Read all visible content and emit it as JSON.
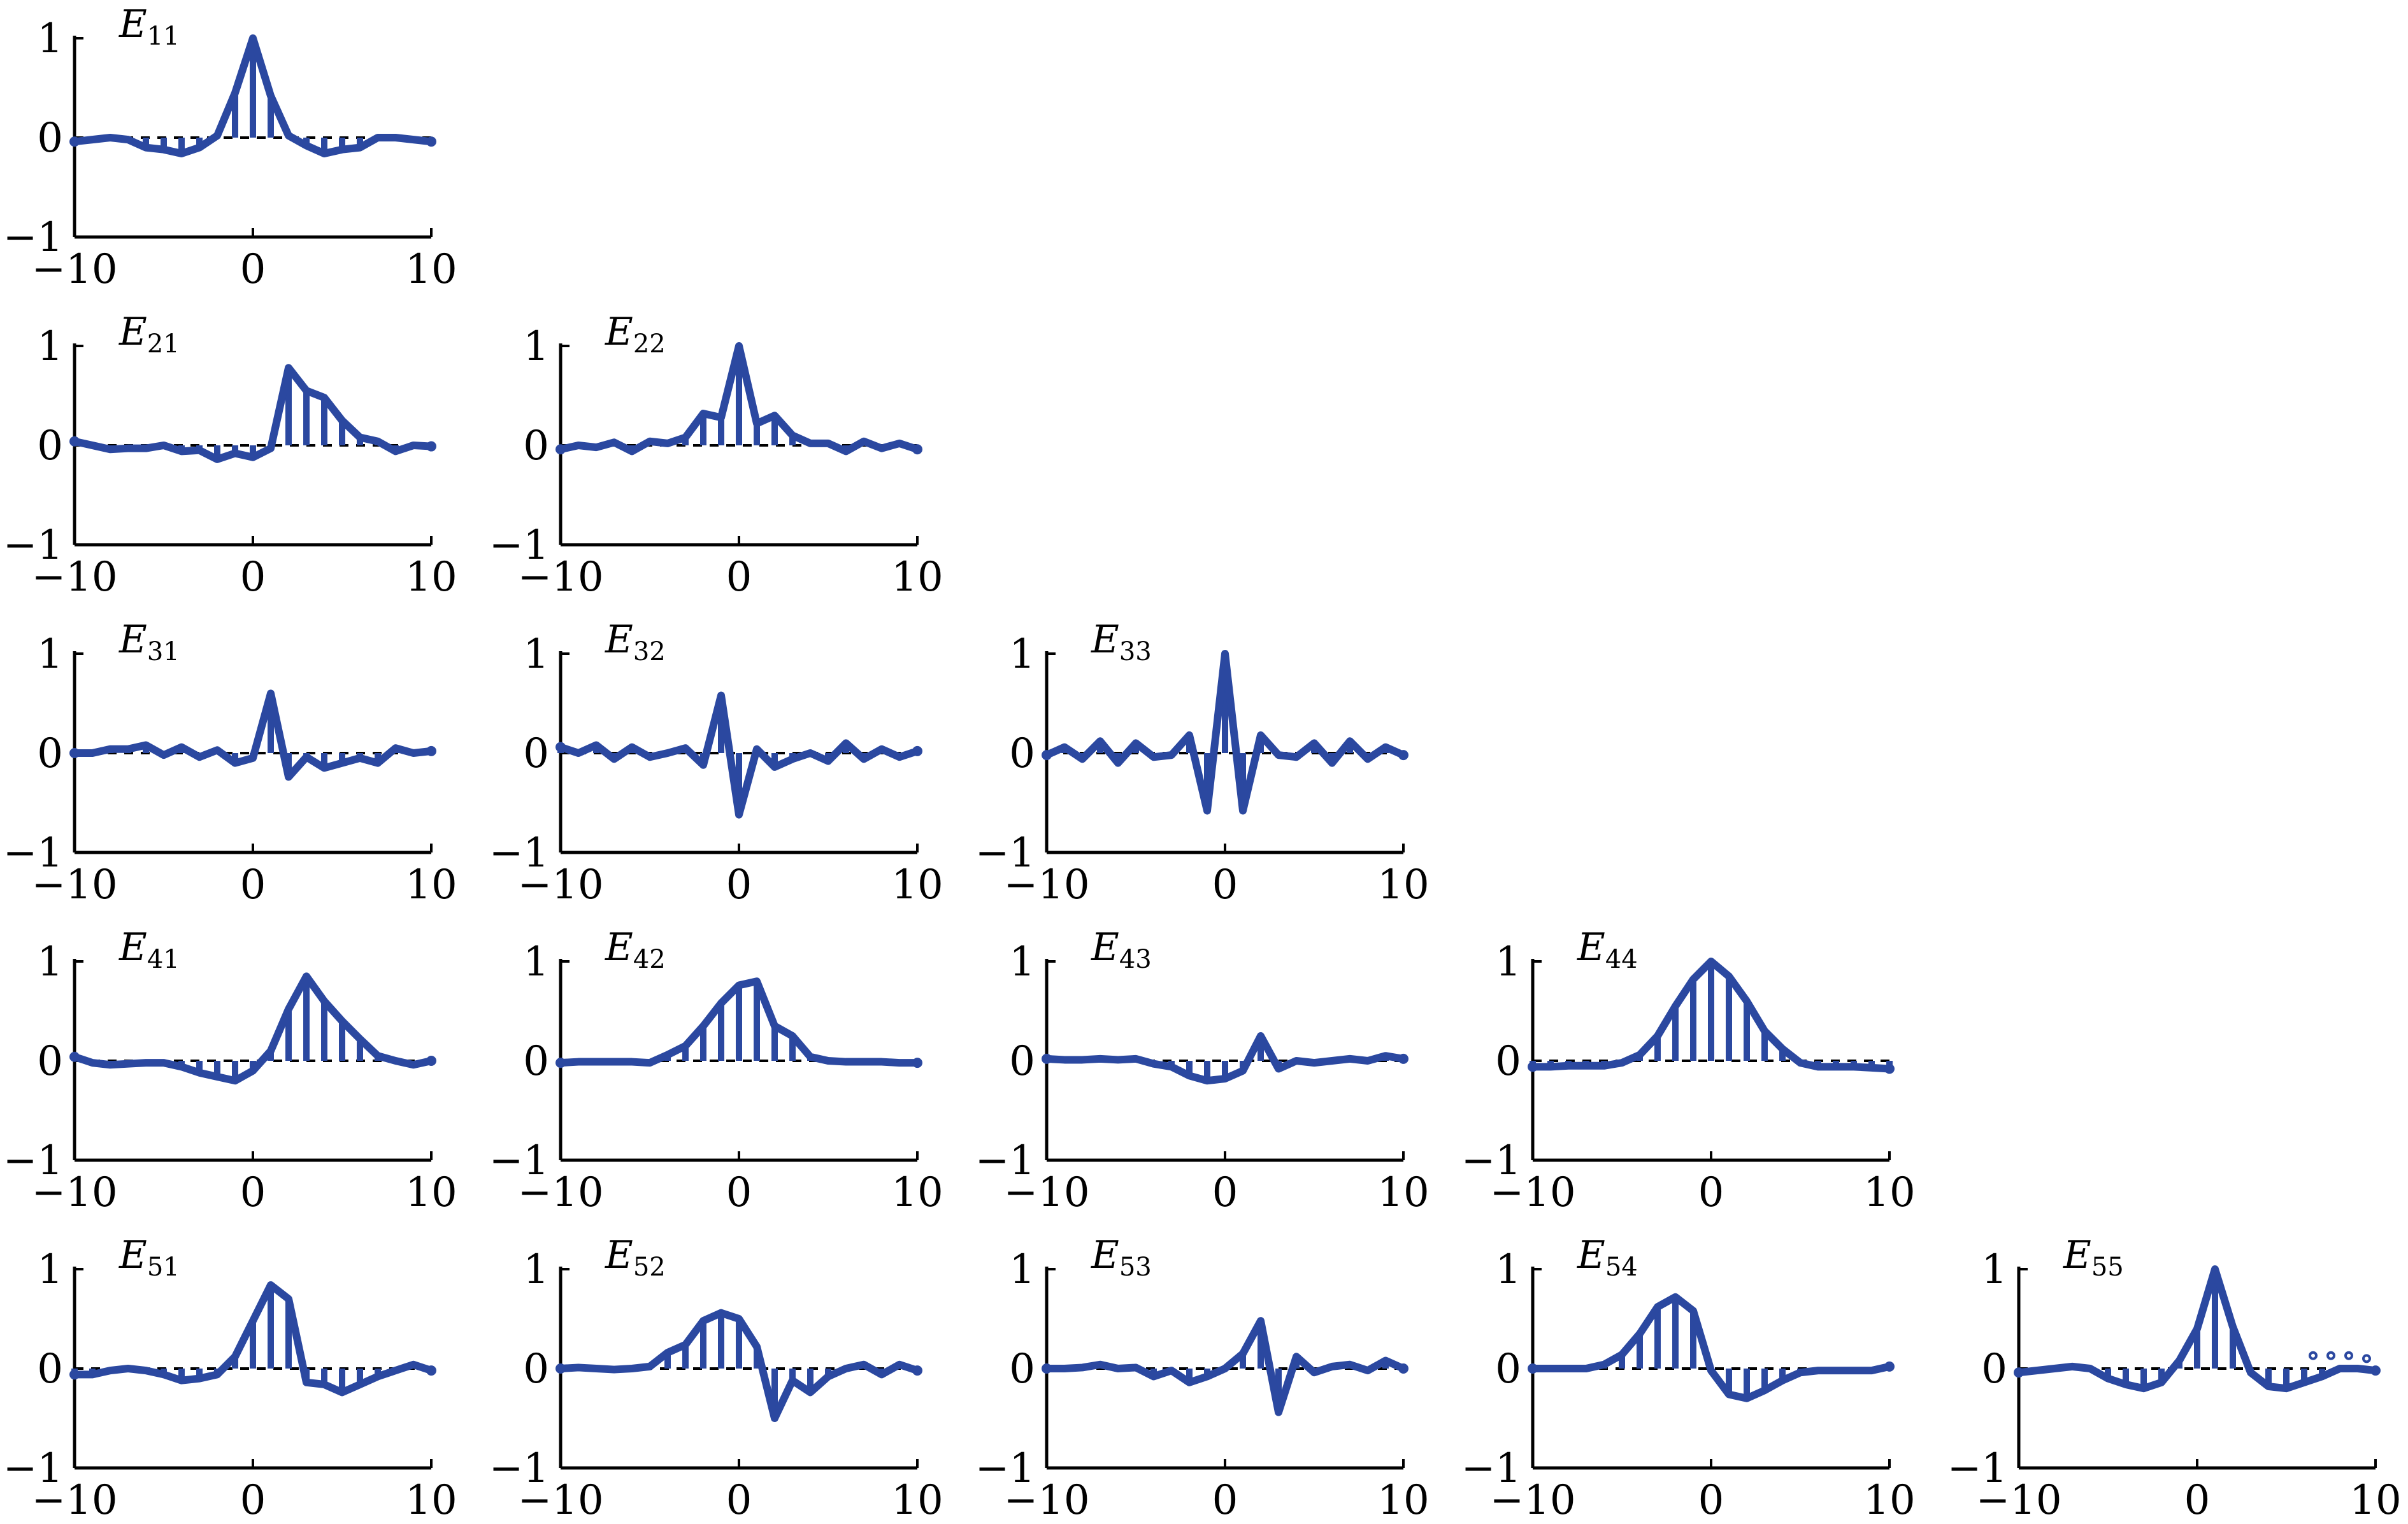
{
  "colors": {
    "series": "#2b48a0",
    "axis": "#000000"
  },
  "chart_data": [
    {
      "type": "stem",
      "row": 1,
      "col": 1,
      "title": "E",
      "subscript": "11",
      "xlim": [
        -10,
        10
      ],
      "ylim": [
        -1,
        1
      ],
      "xticks": [
        "−10",
        "0",
        "10"
      ],
      "yticks": [
        "1",
        "0",
        "−1"
      ],
      "x": [
        -10,
        -9,
        -8,
        -7,
        -6,
        -5,
        -4,
        -3,
        -2,
        -1,
        0,
        1,
        2,
        3,
        4,
        5,
        6,
        7,
        8,
        9,
        10
      ],
      "y": [
        -0.04,
        -0.02,
        0,
        -0.02,
        -0.1,
        -0.12,
        -0.16,
        -0.1,
        0.02,
        0.45,
        1.0,
        0.42,
        0.02,
        -0.08,
        -0.16,
        -0.12,
        -0.1,
        0,
        0,
        -0.02,
        -0.04
      ]
    },
    {
      "type": "stem",
      "row": 2,
      "col": 1,
      "title": "E",
      "subscript": "21",
      "xlim": [
        -10,
        10
      ],
      "ylim": [
        -1,
        1
      ],
      "xticks": [
        "−10",
        "0",
        "10"
      ],
      "yticks": [
        "1",
        "0",
        "−1"
      ],
      "x": [
        -10,
        -9,
        -8,
        -7,
        -6,
        -5,
        -4,
        -3,
        -2,
        -1,
        0,
        1,
        2,
        3,
        4,
        5,
        6,
        7,
        8,
        9,
        10
      ],
      "y": [
        0.04,
        0,
        -0.04,
        -0.03,
        -0.03,
        0,
        -0.06,
        -0.05,
        -0.14,
        -0.08,
        -0.12,
        -0.03,
        0.78,
        0.55,
        0.48,
        0.25,
        0.08,
        0.04,
        -0.06,
        0,
        -0.01
      ]
    },
    {
      "type": "stem",
      "row": 2,
      "col": 2,
      "title": "E",
      "subscript": "22",
      "xlim": [
        -10,
        10
      ],
      "ylim": [
        -1,
        1
      ],
      "xticks": [
        "−10",
        "0",
        "10"
      ],
      "yticks": [
        "1",
        "0",
        "−1"
      ],
      "x": [
        -10,
        -9,
        -8,
        -7,
        -6,
        -5,
        -4,
        -3,
        -2,
        -1,
        0,
        1,
        2,
        3,
        4,
        5,
        6,
        7,
        8,
        9,
        10
      ],
      "y": [
        -0.04,
        0,
        -0.02,
        0.03,
        -0.06,
        0.04,
        0.02,
        0.08,
        0.32,
        0.28,
        1.0,
        0.22,
        0.3,
        0.1,
        0.02,
        0.02,
        -0.06,
        0.04,
        -0.03,
        0.02,
        -0.04
      ]
    },
    {
      "type": "stem",
      "row": 3,
      "col": 1,
      "title": "E",
      "subscript": "31",
      "xlim": [
        -10,
        10
      ],
      "ylim": [
        -1,
        1
      ],
      "xticks": [
        "−10",
        "0",
        "10"
      ],
      "yticks": [
        "1",
        "0",
        "−1"
      ],
      "x": [
        -10,
        -9,
        -8,
        -7,
        -6,
        -5,
        -4,
        -3,
        -2,
        -1,
        0,
        1,
        2,
        3,
        4,
        5,
        6,
        7,
        8,
        9,
        10
      ],
      "y": [
        0,
        0,
        0.04,
        0.04,
        0.08,
        -0.02,
        0.06,
        -0.04,
        0.03,
        -0.1,
        -0.05,
        0.6,
        -0.24,
        -0.04,
        -0.15,
        -0.1,
        -0.05,
        -0.1,
        0.05,
        0,
        0.02
      ]
    },
    {
      "type": "stem",
      "row": 3,
      "col": 2,
      "title": "E",
      "subscript": "32",
      "xlim": [
        -10,
        10
      ],
      "ylim": [
        -1,
        1
      ],
      "xticks": [
        "−10",
        "0",
        "10"
      ],
      "yticks": [
        "1",
        "0",
        "−1"
      ],
      "x": [
        -10,
        -9,
        -8,
        -7,
        -6,
        -5,
        -4,
        -3,
        -2,
        -1,
        0,
        1,
        2,
        3,
        4,
        5,
        6,
        7,
        8,
        9,
        10
      ],
      "y": [
        0.06,
        0,
        0.08,
        -0.06,
        0.06,
        -0.04,
        0,
        0.05,
        -0.12,
        0.58,
        -0.62,
        0.04,
        -0.14,
        -0.06,
        0,
        -0.08,
        0.1,
        -0.06,
        0.04,
        -0.04,
        0.02
      ]
    },
    {
      "type": "stem",
      "row": 3,
      "col": 3,
      "title": "E",
      "subscript": "33",
      "xlim": [
        -10,
        10
      ],
      "ylim": [
        -1,
        1
      ],
      "xticks": [
        "−10",
        "0",
        "10"
      ],
      "yticks": [
        "1",
        "0",
        "−1"
      ],
      "x": [
        -10,
        -9,
        -8,
        -7,
        -6,
        -5,
        -4,
        -3,
        -2,
        -1,
        0,
        1,
        2,
        3,
        4,
        5,
        6,
        7,
        8,
        9,
        10
      ],
      "y": [
        -0.02,
        0.06,
        -0.06,
        0.12,
        -0.1,
        0.1,
        -0.04,
        -0.02,
        0.18,
        -0.58,
        1.0,
        -0.58,
        0.18,
        -0.02,
        -0.04,
        0.1,
        -0.1,
        0.12,
        -0.06,
        0.06,
        -0.02
      ]
    },
    {
      "type": "stem",
      "row": 4,
      "col": 1,
      "title": "E",
      "subscript": "41",
      "xlim": [
        -10,
        10
      ],
      "ylim": [
        -1,
        1
      ],
      "xticks": [
        "−10",
        "0",
        "10"
      ],
      "yticks": [
        "1",
        "0",
        "−1"
      ],
      "x": [
        -10,
        -9,
        -8,
        -7,
        -6,
        -5,
        -4,
        -3,
        -2,
        -1,
        0,
        1,
        2,
        3,
        4,
        5,
        6,
        7,
        8,
        9,
        10
      ],
      "y": [
        0.04,
        -0.02,
        -0.04,
        -0.03,
        -0.02,
        -0.02,
        -0.06,
        -0.12,
        -0.16,
        -0.2,
        -0.1,
        0.1,
        0.52,
        0.85,
        0.6,
        0.4,
        0.22,
        0.05,
        0,
        -0.04,
        0
      ]
    },
    {
      "type": "stem",
      "row": 4,
      "col": 2,
      "title": "E",
      "subscript": "42",
      "xlim": [
        -10,
        10
      ],
      "ylim": [
        -1,
        1
      ],
      "xticks": [
        "−10",
        "0",
        "10"
      ],
      "yticks": [
        "1",
        "0",
        "−1"
      ],
      "x": [
        -10,
        -9,
        -8,
        -7,
        -6,
        -5,
        -4,
        -3,
        -2,
        -1,
        0,
        1,
        2,
        3,
        4,
        5,
        6,
        7,
        8,
        9,
        10
      ],
      "y": [
        -0.02,
        -0.01,
        -0.01,
        -0.01,
        -0.01,
        -0.02,
        0.06,
        0.15,
        0.35,
        0.58,
        0.76,
        0.8,
        0.35,
        0.25,
        0.04,
        0,
        -0.01,
        -0.01,
        -0.01,
        -0.02,
        -0.02
      ]
    },
    {
      "type": "stem",
      "row": 4,
      "col": 3,
      "title": "E",
      "subscript": "43",
      "xlim": [
        -10,
        10
      ],
      "ylim": [
        -1,
        1
      ],
      "xticks": [
        "−10",
        "0",
        "10"
      ],
      "yticks": [
        "1",
        "0",
        "−1"
      ],
      "x": [
        -10,
        -9,
        -8,
        -7,
        -6,
        -5,
        -4,
        -3,
        -2,
        -1,
        0,
        1,
        2,
        3,
        4,
        5,
        6,
        7,
        8,
        9,
        10
      ],
      "y": [
        0.02,
        0.01,
        0.01,
        0.02,
        0.01,
        0.02,
        -0.03,
        -0.06,
        -0.15,
        -0.2,
        -0.18,
        -0.1,
        0.25,
        -0.08,
        0,
        -0.02,
        0,
        0.02,
        0,
        0.05,
        0.02
      ]
    },
    {
      "type": "stem",
      "row": 4,
      "col": 4,
      "title": "E",
      "subscript": "44",
      "xlim": [
        -10,
        10
      ],
      "ylim": [
        -1,
        1
      ],
      "xticks": [
        "−10",
        "0",
        "10"
      ],
      "yticks": [
        "1",
        "0",
        "−1"
      ],
      "x": [
        -10,
        -9,
        -8,
        -7,
        -6,
        -5,
        -4,
        -3,
        -2,
        -1,
        0,
        1,
        2,
        3,
        4,
        5,
        6,
        7,
        8,
        9,
        10
      ],
      "y": [
        -0.06,
        -0.06,
        -0.05,
        -0.05,
        -0.05,
        -0.02,
        0.06,
        0.25,
        0.55,
        0.82,
        1.0,
        0.85,
        0.6,
        0.3,
        0.12,
        -0.02,
        -0.06,
        -0.06,
        -0.06,
        -0.07,
        -0.08
      ]
    },
    {
      "type": "stem",
      "row": 5,
      "col": 1,
      "title": "E",
      "subscript": "51",
      "xlim": [
        -10,
        10
      ],
      "ylim": [
        -1,
        1
      ],
      "xticks": [
        "−10",
        "0",
        "10"
      ],
      "yticks": [
        "1",
        "0",
        "−1"
      ],
      "x": [
        -10,
        -9,
        -8,
        -7,
        -6,
        -5,
        -4,
        -3,
        -2,
        -1,
        0,
        1,
        2,
        3,
        4,
        5,
        6,
        7,
        8,
        9,
        10
      ],
      "y": [
        -0.06,
        -0.06,
        -0.02,
        0,
        -0.02,
        -0.06,
        -0.12,
        -0.1,
        -0.06,
        0.12,
        0.48,
        0.84,
        0.7,
        -0.14,
        -0.16,
        -0.24,
        -0.16,
        -0.08,
        -0.02,
        0.04,
        -0.02
      ]
    },
    {
      "type": "stem",
      "row": 5,
      "col": 2,
      "title": "E",
      "subscript": "52",
      "xlim": [
        -10,
        10
      ],
      "ylim": [
        -1,
        1
      ],
      "xticks": [
        "−10",
        "0",
        "10"
      ],
      "yticks": [
        "1",
        "0",
        "−1"
      ],
      "x": [
        -10,
        -9,
        -8,
        -7,
        -6,
        -5,
        -4,
        -3,
        -2,
        -1,
        0,
        1,
        2,
        3,
        4,
        5,
        6,
        7,
        8,
        9,
        10
      ],
      "y": [
        0,
        0.01,
        0,
        -0.01,
        0,
        0.02,
        0.16,
        0.24,
        0.48,
        0.56,
        0.5,
        0.22,
        -0.5,
        -0.12,
        -0.24,
        -0.08,
        0,
        0.04,
        -0.06,
        0.04,
        -0.02
      ]
    },
    {
      "type": "stem",
      "row": 5,
      "col": 3,
      "title": "E",
      "subscript": "53",
      "xlim": [
        -10,
        10
      ],
      "ylim": [
        -1,
        1
      ],
      "xticks": [
        "−10",
        "0",
        "10"
      ],
      "yticks": [
        "1",
        "0",
        "−1"
      ],
      "x": [
        -10,
        -9,
        -8,
        -7,
        -6,
        -5,
        -4,
        -3,
        -2,
        -1,
        0,
        1,
        2,
        3,
        4,
        5,
        6,
        7,
        8,
        9,
        10
      ],
      "y": [
        0,
        0,
        0.01,
        0.04,
        0,
        0.01,
        -0.08,
        -0.02,
        -0.14,
        -0.08,
        0,
        0.15,
        0.48,
        -0.44,
        0.12,
        -0.04,
        0.02,
        0.04,
        -0.02,
        0.08,
        0
      ]
    },
    {
      "type": "stem",
      "row": 5,
      "col": 4,
      "title": "E",
      "subscript": "54",
      "xlim": [
        -10,
        10
      ],
      "ylim": [
        -1,
        1
      ],
      "xticks": [
        "−10",
        "0",
        "10"
      ],
      "yticks": [
        "1",
        "0",
        "−1"
      ],
      "x": [
        -10,
        -9,
        -8,
        -7,
        -6,
        -5,
        -4,
        -3,
        -2,
        -1,
        0,
        1,
        2,
        3,
        4,
        5,
        6,
        7,
        8,
        9,
        10
      ],
      "y": [
        0,
        0,
        0,
        0,
        0.04,
        0.14,
        0.35,
        0.62,
        0.72,
        0.58,
        -0.02,
        -0.26,
        -0.3,
        -0.22,
        -0.12,
        -0.04,
        -0.02,
        -0.02,
        -0.02,
        -0.02,
        0.02
      ]
    },
    {
      "type": "stem",
      "row": 5,
      "col": 5,
      "title": "E",
      "subscript": "55",
      "xlim": [
        -10,
        10
      ],
      "ylim": [
        -1,
        1
      ],
      "xticks": [
        "−10",
        "0",
        "10"
      ],
      "yticks": [
        "1",
        "0",
        "−1"
      ],
      "x": [
        -10,
        -9,
        -8,
        -7,
        -6,
        -5,
        -4,
        -3,
        -2,
        -1,
        0,
        1,
        2,
        3,
        4,
        5,
        6,
        7,
        8,
        9,
        10
      ],
      "y": [
        -0.04,
        -0.02,
        0,
        0.02,
        0,
        -0.1,
        -0.16,
        -0.2,
        -0.14,
        0.08,
        0.4,
        1.0,
        0.42,
        -0.04,
        -0.18,
        -0.2,
        -0.14,
        -0.08,
        0,
        0,
        -0.02
      ]
    }
  ]
}
